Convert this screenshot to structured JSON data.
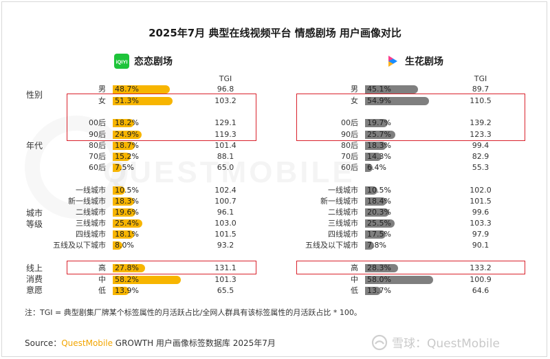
{
  "title": "2025年7月 典型在线视频平台 情感剧场 用户画像对比",
  "left_brand": {
    "name": "恋恋剧场",
    "logo_text": "iQIYI",
    "icon": "iqiyi-logo"
  },
  "right_brand": {
    "name": "生花剧场",
    "icon": "youku-logo"
  },
  "tgi_header": "TGI",
  "categories": {
    "gender": "性别",
    "age": "年代",
    "city_a": "城市",
    "city_b": "等级",
    "consume_a": "线上",
    "consume_b": "消费",
    "consume_c": "意愿"
  },
  "colors": {
    "left_bar": "#f7b500",
    "right_bar": "#7f7f7f",
    "highlight": "#d9202a",
    "brand_accent": "#f2a500"
  },
  "watermark": "QUESTMOBILE",
  "chart_data": {
    "type": "bar",
    "x_unit": "%",
    "rows": [
      {
        "label": "男",
        "left": 48.7,
        "left_tgi": "96.8",
        "right": 45.1,
        "right_tgi": "89.7"
      },
      {
        "label": "女",
        "left": 51.3,
        "left_tgi": "103.2",
        "right": 54.9,
        "right_tgi": "110.5"
      },
      {
        "label": "00后",
        "left": 18.2,
        "left_tgi": "129.1",
        "right": 19.7,
        "right_tgi": "139.2"
      },
      {
        "label": "90后",
        "left": 24.9,
        "left_tgi": "119.3",
        "right": 25.7,
        "right_tgi": "123.3"
      },
      {
        "label": "80后",
        "left": 18.7,
        "left_tgi": "101.4",
        "right": 18.3,
        "right_tgi": "99.4"
      },
      {
        "label": "70后",
        "left": 15.2,
        "left_tgi": "88.1",
        "right": 14.3,
        "right_tgi": "82.9"
      },
      {
        "label": "60后",
        "left": 7.5,
        "left_tgi": "65.0",
        "right": 6.4,
        "right_tgi": "55.3"
      },
      {
        "label": "一线城市",
        "left": 10.5,
        "left_tgi": "102.4",
        "right": 10.5,
        "right_tgi": "102.0"
      },
      {
        "label": "新一线城市",
        "left": 18.3,
        "left_tgi": "100.7",
        "right": 18.4,
        "right_tgi": "101.5"
      },
      {
        "label": "二线城市",
        "left": 19.6,
        "left_tgi": "96.1",
        "right": 20.3,
        "right_tgi": "99.6"
      },
      {
        "label": "三线城市",
        "left": 25.4,
        "left_tgi": "103.0",
        "right": 25.5,
        "right_tgi": "103.3"
      },
      {
        "label": "四线城市",
        "left": 18.1,
        "left_tgi": "101.5",
        "right": 17.5,
        "right_tgi": "97.9"
      },
      {
        "label": "五线及以下城市",
        "left": 8.0,
        "left_tgi": "93.2",
        "right": 7.8,
        "right_tgi": "90.1"
      },
      {
        "label": "高",
        "left": 27.8,
        "left_tgi": "131.1",
        "right": 28.3,
        "right_tgi": "133.2"
      },
      {
        "label": "中",
        "left": 58.2,
        "left_tgi": "101.3",
        "right": 58.0,
        "right_tgi": "100.9"
      },
      {
        "label": "低",
        "left": 13.9,
        "left_tgi": "65.5",
        "right": 13.7,
        "right_tgi": "64.6"
      }
    ],
    "highlighted_rows": [
      "女",
      "00后",
      "90后",
      "高"
    ]
  },
  "note": "注：TGI = 典型剧集厂牌某个标签属性的月活跃占比/全网人群具有该标签属性的月活跃占比 * 100。",
  "source": {
    "prefix": "Source：",
    "brand": "QuestMobile",
    "rest": " GROWTH 用户画像标签数据库 2025年7月"
  },
  "xueqiu": {
    "text": "雪球：QuestMobile"
  }
}
